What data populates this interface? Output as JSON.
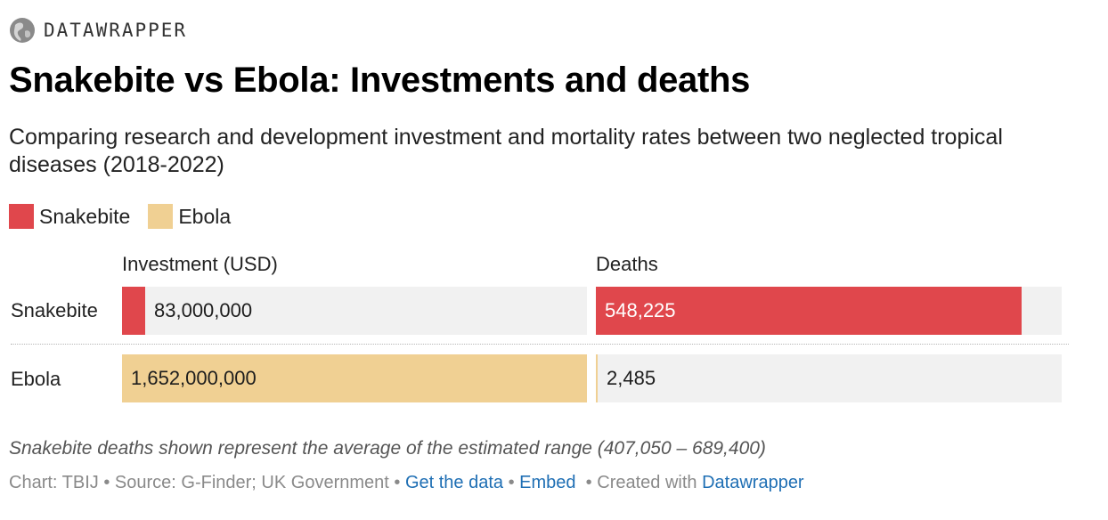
{
  "brand": {
    "name": "DATAWRAPPER",
    "icon": "datawrapper-logo-icon"
  },
  "colors": {
    "snakebite": "#e0474c",
    "ebola": "#f0d093",
    "track": "#f1f1f1",
    "link": "#1f6fb4"
  },
  "chart_data": {
    "type": "bar",
    "title": "Snakebite vs Ebola: Investments and deaths",
    "subtitle": "Comparing research and development investment and mortality rates between two neglected tropical diseases (2018-2022)",
    "legend": [
      {
        "name": "Snakebite",
        "color": "#e0474c"
      },
      {
        "name": "Ebola",
        "color": "#f0d093"
      }
    ],
    "categories": [
      "Snakebite",
      "Ebola"
    ],
    "series": [
      {
        "name": "Investment (USD)",
        "values": [
          83000000,
          1652000000
        ],
        "labels": [
          "83,000,000",
          "1,652,000,000"
        ],
        "xlim": [
          0,
          1652000000
        ]
      },
      {
        "name": "Deaths",
        "values": [
          548225,
          2485
        ],
        "labels": [
          "548,225",
          "2,485"
        ],
        "xlim": [
          0,
          600000
        ]
      }
    ],
    "legend_placement": "top-left",
    "grid": false
  },
  "notes": "Snakebite deaths shown represent the average of the estimated range (407,050 – 689,400)",
  "footer": {
    "chart_credit": "Chart: TBIJ",
    "separator": "•",
    "source": "Source: G-Finder; UK Government",
    "get_data": "Get the data",
    "embed": "Embed",
    "created_with": "Created with",
    "datawrapper": "Datawrapper"
  }
}
